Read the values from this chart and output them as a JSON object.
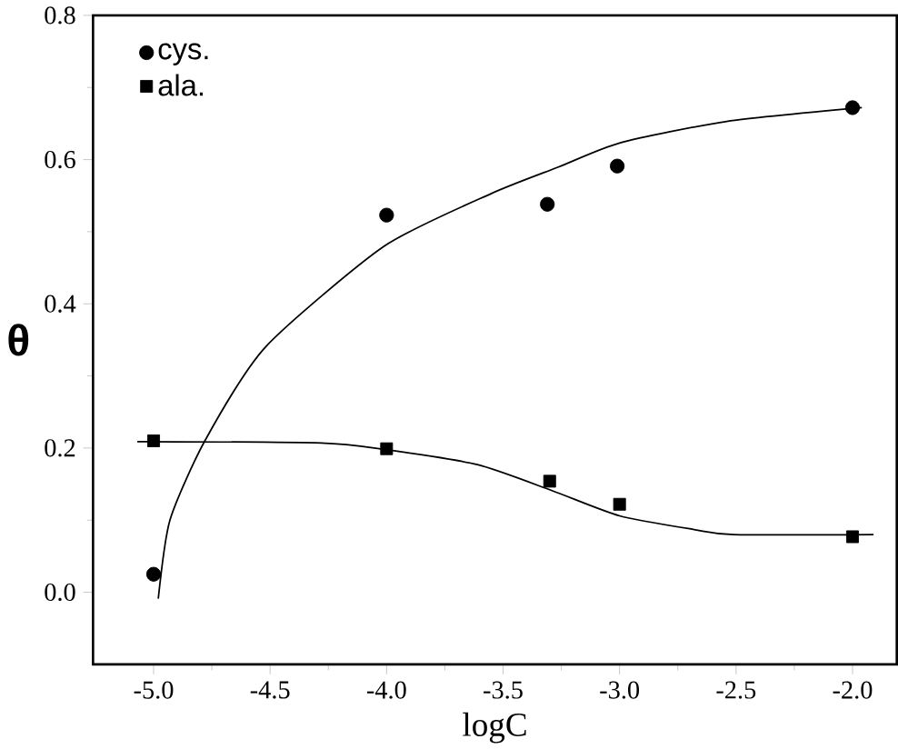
{
  "chart_data": {
    "type": "scatter",
    "xlabel": "logC",
    "ylabel": "θ",
    "xlim": [
      -5.26,
      -1.81
    ],
    "ylim": [
      -0.1,
      0.8
    ],
    "xticks": [
      {
        "value": -5.0,
        "label": "-5.0"
      },
      -4.5,
      {
        "value": -4.0,
        "label": "-4.0"
      },
      -3.5,
      {
        "value": -3.0,
        "label": "-3.0"
      },
      -2.5,
      {
        "value": -2.0,
        "label": "-2.0"
      }
    ],
    "yticks": [
      {
        "value": 0.0,
        "label": "0.0"
      },
      0.2,
      0.4,
      0.6,
      0.8
    ],
    "legend": "top left",
    "grid": false,
    "series": [
      {
        "name": "cys.",
        "marker": "circle",
        "color": "#000000",
        "x": [
          -5.0,
          -4.0,
          -3.31,
          -3.01,
          -2.0
        ],
        "values": [
          0.025,
          0.523,
          0.538,
          0.591,
          0.672
        ]
      },
      {
        "name": "ala.",
        "marker": "square",
        "color": "#000000",
        "x": [
          -5.0,
          -4.0,
          -3.3,
          -3.0,
          -2.0
        ],
        "values": [
          0.21,
          0.199,
          0.154,
          0.122,
          0.077
        ]
      },
      {
        "type": "line",
        "color": "#000000",
        "x": [
          -4.98,
          -4.93,
          -4.78,
          -4.52,
          -4.01,
          -3.55,
          -3.26,
          -3.0,
          -2.54,
          -1.96
        ],
        "values": [
          -0.009,
          0.1,
          0.21,
          0.34,
          0.48,
          0.553,
          0.59,
          0.623,
          0.653,
          0.672
        ]
      },
      {
        "type": "line",
        "color": "#000000",
        "x": [
          -5.07,
          -4.28,
          -4.01,
          -3.61,
          -3.29,
          -3.0,
          -2.68,
          -2.51,
          -1.91
        ],
        "values": [
          0.209,
          0.207,
          0.198,
          0.177,
          0.141,
          0.106,
          0.087,
          0.08,
          0.08
        ]
      }
    ]
  }
}
